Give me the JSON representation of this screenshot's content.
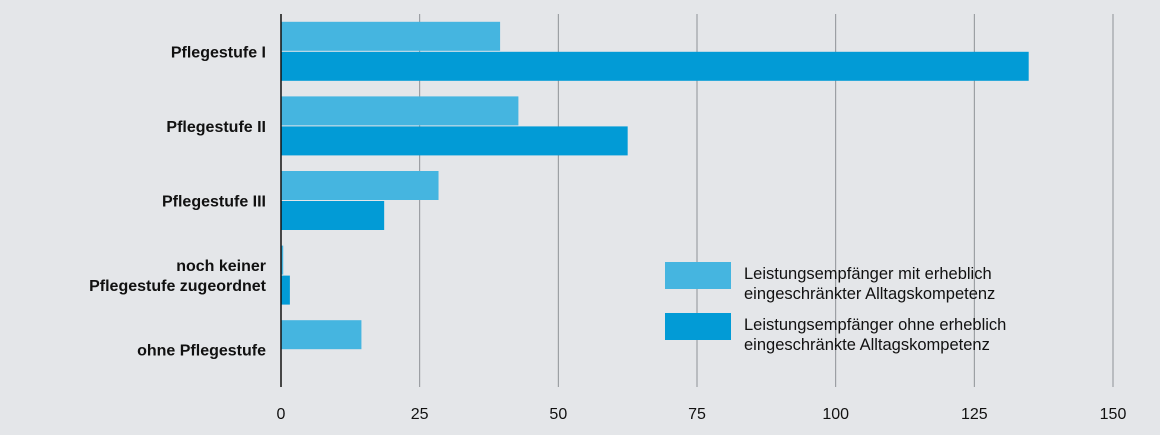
{
  "chart_data": {
    "type": "bar",
    "orientation": "horizontal",
    "categories": [
      [
        "Pflegestufe I"
      ],
      [
        "Pflegestufe II"
      ],
      [
        "Pflegestufe III"
      ],
      [
        "noch keiner",
        "Pflegestufe zugeordnet"
      ],
      [
        "ohne Pflegestufe"
      ]
    ],
    "series": [
      {
        "name": [
          "Leistungsempfänger mit erheblich",
          "eingeschränkter Alltagskompetenz"
        ],
        "color": "#45b5e0",
        "values": [
          39.5,
          42.8,
          28.4,
          0.4,
          14.5
        ]
      },
      {
        "name": [
          "Leistungsempfänger ohne erheblich",
          "eingeschränkte Alltagskompetenz"
        ],
        "color": "#029bd6",
        "values": [
          134.8,
          62.5,
          18.6,
          1.6,
          null
        ]
      }
    ],
    "xlim": [
      0,
      150
    ],
    "xticks": [
      "0",
      "25",
      "50",
      "75",
      "100",
      "125",
      "150"
    ],
    "grid": true,
    "legend_position": "lower-right"
  }
}
